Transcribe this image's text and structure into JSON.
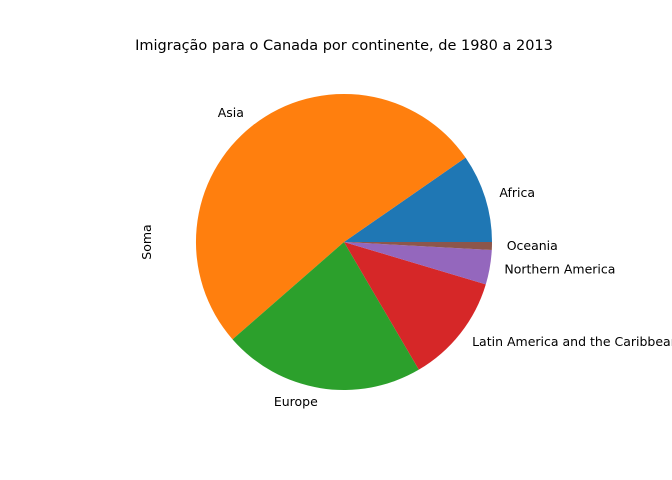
{
  "chart_data": {
    "type": "pie",
    "title": "Imigração para o Canada por continente, de 1980 a 2013",
    "ylabel": "Soma",
    "slices": [
      {
        "label": "Africa",
        "value": 618948,
        "color": "#1f77b4"
      },
      {
        "label": "Asia",
        "value": 3317794,
        "color": "#ff7f0e"
      },
      {
        "label": "Europe",
        "value": 1410947,
        "color": "#2ca02c"
      },
      {
        "label": "Latin America and the Caribbean",
        "value": 765148,
        "color": "#d62728"
      },
      {
        "label": "Northern America",
        "value": 241142,
        "color": "#9467bd"
      },
      {
        "label": "Oceania",
        "value": 55174,
        "color": "#8c564b"
      }
    ],
    "start_angle_deg": 0,
    "direction": "counterclockwise",
    "legend": "none"
  }
}
